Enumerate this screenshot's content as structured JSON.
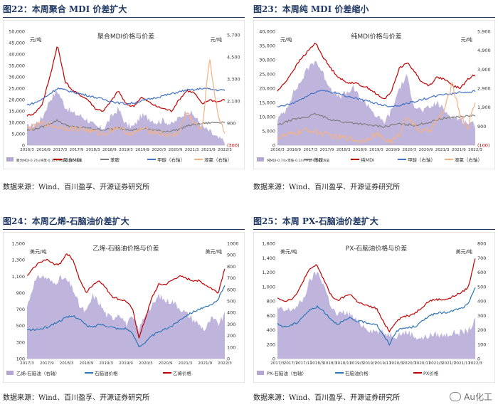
{
  "panels": [
    {
      "title": "图22：本周聚合 MDI 价差扩大",
      "source": "数据来源：Wind、百川盈孚、开源证券研究所",
      "chart_data": {
        "type": "line",
        "title": "聚合MDI价格与价差",
        "ylabel_left": "元/吨",
        "ylabel_right": "元/吨",
        "yleft_range": [
          0,
          50000
        ],
        "yleft_ticks": [
          "0",
          "5,000",
          "10,000",
          "15,000",
          "20,000",
          "25,000",
          "30,000",
          "35,000",
          "40,000",
          "45,000",
          "50,000"
        ],
        "yright_range": [
          -300,
          5900
        ],
        "yright_ticks": [
          "(300)",
          "900",
          "2,100",
          "3,300",
          "4,500",
          "5,700"
        ],
        "right_axis_color": "#c00000",
        "xticks": [
          "2016/3",
          "2016/9",
          "2017/3",
          "2017/9",
          "2018/3",
          "2018/9",
          "2019/3",
          "2019/9",
          "2020/3",
          "2020/9",
          "2021/3",
          "2021/9",
          "2022/3"
        ],
        "series": [
          {
            "name": "聚合MDI-0.74×纯苯-0.14×甲醇-0.56×液氯",
            "kind": "area",
            "axis": "left",
            "color": "#b4a7d6",
            "values": [
              8000,
              9000,
              12000,
              20000,
              24000,
              17000,
              14000,
              13000,
              11000,
              8000,
              7000,
              12000,
              16000,
              9000,
              8000,
              13000,
              12000,
              10000,
              11000,
              9000,
              12000,
              15000,
              13000,
              8000,
              6000,
              3000,
              2000
            ]
          },
          {
            "name": "聚合MDI",
            "kind": "line",
            "axis": "left",
            "color": "#c00000",
            "values": [
              13000,
              14000,
              18000,
              30000,
              44000,
              28000,
              24000,
              22000,
              20000,
              16000,
              15000,
              19000,
              24000,
              18000,
              17000,
              21000,
              19000,
              17000,
              16000,
              15000,
              20000,
              24000,
              23000,
              18000,
              20000,
              19000,
              20000
            ]
          },
          {
            "name": "苯胺",
            "kind": "line",
            "axis": "left",
            "color": "#7f7f7f",
            "values": [
              6500,
              7000,
              8000,
              9500,
              11000,
              9000,
              8000,
              7800,
              7500,
              7000,
              6800,
              7000,
              7500,
              7000,
              6800,
              7200,
              7000,
              6500,
              6000,
              6300,
              7000,
              8500,
              9000,
              9500,
              9800,
              10000,
              10200
            ]
          },
          {
            "name": "甲醇（右轴）",
            "kind": "line",
            "axis": "right",
            "color": "#4472c4",
            "values": [
              1900,
              2000,
              2200,
              2500,
              2800,
              2700,
              2600,
              2500,
              2400,
              2300,
              2200,
              2100,
              2000,
              1950,
              2000,
              2100,
              2200,
              2300,
              2400,
              2500,
              2600,
              2700,
              2700,
              2800,
              2750,
              2700,
              2700
            ]
          },
          {
            "name": "液氯（右轴）",
            "kind": "line",
            "axis": "right",
            "color": "#f4b183",
            "values": [
              600,
              700,
              900,
              800,
              700,
              650,
              600,
              600,
              500,
              400,
              300,
              500,
              700,
              400,
              300,
              600,
              500,
              400,
              300,
              200,
              400,
              1500,
              900,
              500,
              4500,
              1500,
              400
            ]
          }
        ],
        "legend": [
          "聚合MDI-0.74×纯苯-0.14×甲醇-0.56×液氯",
          "聚合MDI",
          "苯胺",
          "甲醇（右轴）",
          "液氯（右轴）"
        ],
        "legend_position": "bottom"
      }
    },
    {
      "title": "图23：本周纯 MDI 价差缩小",
      "source": "数据来源：Wind、百川盈孚、开源证券研究所",
      "chart_data": {
        "type": "line",
        "title": "纯MDI价格与价差",
        "ylabel_left": "元/吨",
        "ylabel_right": "元/吨",
        "yleft_range": [
          0,
          40000
        ],
        "yleft_ticks": [
          "0",
          "5,000",
          "10,000",
          "15,000",
          "20,000",
          "25,000",
          "30,000",
          "35,000",
          "40,000"
        ],
        "yright_range": [
          -100,
          5900
        ],
        "yright_ticks": [
          "(100)",
          "900",
          "1,900",
          "2,900",
          "3,900",
          "4,900",
          "5,900"
        ],
        "right_axis_color": "#c00000",
        "xticks": [
          "2016/3",
          "2016/9",
          "2017/3",
          "2017/9",
          "2018/3",
          "2018/9",
          "2019/3",
          "2019/9",
          "2020/3",
          "2020/9",
          "2021/3",
          "2021/9",
          "2022/3"
        ],
        "series": [
          {
            "name": "纯MDI-0.74×苯胺-0.14×甲醇-0.56×液氯",
            "kind": "area",
            "axis": "left",
            "color": "#b4a7d6",
            "values": [
              9000,
              12000,
              18000,
              22000,
              27000,
              30000,
              25000,
              20000,
              17000,
              18000,
              20000,
              16000,
              14000,
              10000,
              8000,
              12000,
              20000,
              24000,
              14000,
              12000,
              13000,
              15000,
              12000,
              10000,
              9000,
              8000,
              7000
            ]
          },
          {
            "name": "纯MDI",
            "kind": "line",
            "axis": "left",
            "color": "#c00000",
            "values": [
              19000,
              22000,
              26000,
              30000,
              33000,
              36000,
              31000,
              27000,
              24000,
              22000,
              22000,
              21000,
              20000,
              18000,
              16000,
              19000,
              27000,
              29000,
              26000,
              22000,
              21000,
              24000,
              23000,
              21000,
              20000,
              23000,
              25000
            ]
          },
          {
            "name": "苯胺",
            "kind": "line",
            "axis": "left",
            "color": "#7f7f7f",
            "values": [
              7000,
              8000,
              9000,
              9500,
              10000,
              11000,
              10000,
              9000,
              8500,
              8000,
              7800,
              7500,
              7000,
              6800,
              6500,
              7000,
              7500,
              7200,
              7000,
              7500,
              8000,
              9000,
              9500,
              9800,
              10000,
              10200,
              10500
            ]
          },
          {
            "name": "甲醇（右轴）",
            "kind": "line",
            "axis": "right",
            "color": "#4472c4",
            "values": [
              1900,
              2000,
              2100,
              2300,
              2500,
              2700,
              2800,
              2700,
              2600,
              2500,
              2400,
              2300,
              2200,
              2100,
              2000,
              1950,
              2000,
              2100,
              2200,
              2300,
              2400,
              2500,
              2600,
              2600,
              2700,
              2700,
              2750
            ]
          },
          {
            "name": "液氯（右轴）",
            "kind": "line",
            "axis": "right",
            "color": "#f4b183",
            "values": [
              300,
              400,
              500,
              600,
              700,
              600,
              500,
              400,
              300,
              300,
              200,
              100,
              300,
              500,
              200,
              100,
              400,
              1500,
              900,
              600,
              700,
              1200,
              1800,
              3200,
              1500,
              800,
              2200
            ]
          }
        ],
        "legend": [
          "纯MDI-0.74×苯胺-0.14×甲醇-0.56×液氯",
          "苯胺",
          "纯MDI",
          "甲醇（右轴）",
          "液氯（右轴）"
        ],
        "legend_position": "bottom"
      }
    },
    {
      "title": "图24：本周乙烯-石脑油价差扩大",
      "source": "数据来源：Wind、百川盈孚、开源证券研究所",
      "chart_data": {
        "type": "line",
        "title": "乙烯-石脑油价格与价差",
        "ylabel_left": "美元/吨",
        "ylabel_right": "美元/吨",
        "yleft_range": [
          100,
          1500
        ],
        "yleft_ticks": [
          "100",
          "300",
          "500",
          "700",
          "900",
          "1,100",
          "1,300",
          "1,500"
        ],
        "yright_range": [
          0,
          1000
        ],
        "yright_ticks": [
          "0",
          "100",
          "200",
          "300",
          "400",
          "500",
          "600",
          "700",
          "800",
          "900",
          "1000"
        ],
        "right_axis_color": "#c00000",
        "xticks": [
          "2017/3",
          "2017/9",
          "2018/3",
          "2018/9",
          "2019/3",
          "2019/9",
          "2020/3",
          "2020/9",
          "2021/3",
          "2021/9",
          "2022/3"
        ],
        "series": [
          {
            "name": "乙烯-石脑油（右轴）",
            "kind": "area",
            "axis": "right",
            "color": "#b4a7d6",
            "values": [
              450,
              650,
              720,
              700,
              650,
              700,
              680,
              600,
              450,
              400,
              550,
              480,
              380,
              350,
              400,
              300,
              350,
              250,
              400,
              450,
              550,
              500,
              500,
              450,
              400,
              350,
              300,
              250,
              350,
              300,
              380
            ]
          },
          {
            "name": "石脑油价格",
            "kind": "line",
            "axis": "left",
            "color": "#2e75b6",
            "values": [
              450,
              450,
              460,
              480,
              520,
              560,
              600,
              620,
              580,
              500,
              480,
              520,
              500,
              480,
              460,
              470,
              400,
              250,
              300,
              380,
              420,
              460,
              500,
              560,
              620,
              660,
              700,
              720,
              750,
              820,
              1000
            ]
          },
          {
            "name": "乙烯价格",
            "kind": "line",
            "axis": "left",
            "color": "#c00000",
            "values": [
              1100,
              1200,
              1280,
              1300,
              1250,
              1250,
              1380,
              1300,
              1050,
              900,
              1000,
              1050,
              950,
              850,
              820,
              800,
              700,
              350,
              600,
              850,
              1000,
              1000,
              1050,
              1100,
              1080,
              1050,
              1050,
              1000,
              950,
              900,
              1200
            ]
          }
        ],
        "legend": [
          "乙烯-石脑油（右轴）",
          "石脑油价格",
          "乙烯价格"
        ],
        "legend_position": "bottom"
      }
    },
    {
      "title": "图25：本周 PX-石脑油价差扩大",
      "source": "数据来源：Wind、百川盈孚、开源证券研究所",
      "chart_data": {
        "type": "line",
        "title": "PX-石脑油价格与价差",
        "ylabel_left": "美元/吨",
        "ylabel_right": "美元/吨",
        "yleft_range": [
          0,
          1600
        ],
        "yleft_ticks": [
          "0",
          "200",
          "400",
          "600",
          "800",
          "1,000",
          "1,200",
          "1,400",
          "1,600"
        ],
        "yright_range": [
          0,
          800
        ],
        "yright_ticks": [
          "0",
          "100",
          "200",
          "300",
          "400",
          "500",
          "600",
          "700",
          "800"
        ],
        "right_axis_color": "#c00000",
        "xticks": [
          "2017/3",
          "2017/7",
          "2017/11",
          "2018/3",
          "2018/7",
          "2018/11",
          "2019/3",
          "2019/7",
          "2019/11",
          "2020/3",
          "2020/7",
          "2020/11",
          "2021/3",
          "2021/7",
          "2021/11",
          "2022/3"
        ],
        "series": [
          {
            "name": "PX-石脑油（右轴）",
            "kind": "area",
            "axis": "right",
            "color": "#b4a7d6",
            "values": [
              350,
              330,
              340,
              360,
              420,
              550,
              600,
              520,
              380,
              300,
              320,
              310,
              260,
              230,
              200,
              190,
              180,
              170,
              160,
              180,
              180,
              150,
              140,
              160,
              170,
              160,
              170,
              180,
              180,
              200,
              260
            ]
          },
          {
            "name": "石脑油价格",
            "kind": "line",
            "axis": "left",
            "color": "#2e75b6",
            "values": [
              480,
              440,
              460,
              500,
              600,
              680,
              720,
              660,
              560,
              480,
              520,
              560,
              520,
              510,
              490,
              480,
              330,
              200,
              380,
              420,
              430,
              450,
              520,
              600,
              620,
              640,
              640,
              680,
              700,
              760,
              1000
            ]
          },
          {
            "name": "PX价格",
            "kind": "line",
            "axis": "left",
            "color": "#c00000",
            "values": [
              850,
              800,
              820,
              900,
              1100,
              1250,
              1300,
              1100,
              900,
              800,
              850,
              900,
              800,
              750,
              720,
              700,
              520,
              380,
              520,
              580,
              600,
              640,
              720,
              800,
              820,
              820,
              830,
              880,
              920,
              1000,
              1400
            ]
          }
        ],
        "legend": [
          "PX-石脑油（右轴）",
          "石脑油价格",
          "PX价格"
        ],
        "legend_position": "bottom"
      }
    }
  ],
  "watermark": "Au化工",
  "colors": {
    "title": "#1f3864",
    "axis_text": "#333333"
  }
}
